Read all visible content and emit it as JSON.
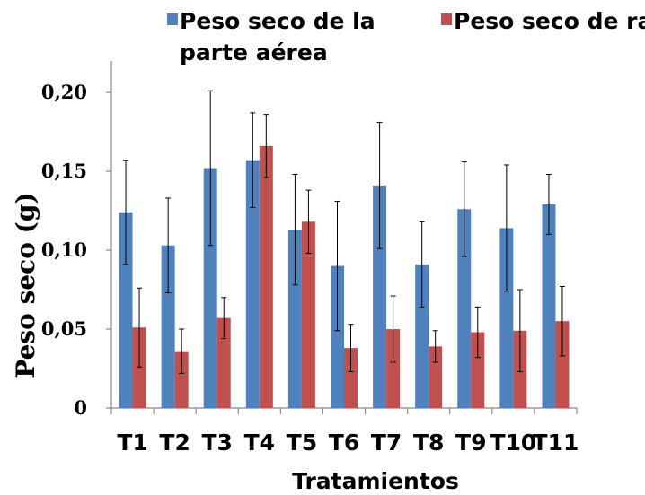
{
  "chart_data": {
    "type": "bar",
    "categories": [
      "T1",
      "T2",
      "T3",
      "T4",
      "T5",
      "T6",
      "T7",
      "T8",
      "T9",
      "T10",
      "T11"
    ],
    "series": [
      {
        "name": "Peso seco de la parte aérea",
        "legend_lines": [
          "Peso seco de la",
          "parte aérea"
        ],
        "color": "#4f81bd",
        "values": [
          0.124,
          0.103,
          0.152,
          0.157,
          0.113,
          0.09,
          0.141,
          0.091,
          0.126,
          0.114,
          0.129
        ],
        "errors": [
          0.033,
          0.03,
          0.049,
          0.03,
          0.035,
          0.041,
          0.04,
          0.027,
          0.03,
          0.04,
          0.019
        ]
      },
      {
        "name": "Peso seco de raíz",
        "legend_lines": [
          "Peso seco de raíz"
        ],
        "color": "#c0504d",
        "values": [
          0.051,
          0.036,
          0.057,
          0.166,
          0.118,
          0.038,
          0.05,
          0.039,
          0.048,
          0.049,
          0.055
        ],
        "errors": [
          0.025,
          0.014,
          0.013,
          0.02,
          0.02,
          0.015,
          0.021,
          0.01,
          0.016,
          0.026,
          0.022
        ]
      }
    ],
    "xlabel": "Tratamientos",
    "ylabel": "Peso seco (g)",
    "ylim": [
      0,
      0.2
    ],
    "yticks": [
      0,
      0.05,
      0.1,
      0.15,
      0.2
    ],
    "ytick_labels": [
      "0",
      "0,05",
      "0,10",
      "0,15",
      "0,20"
    ],
    "grid": false,
    "legend_position": "top"
  }
}
